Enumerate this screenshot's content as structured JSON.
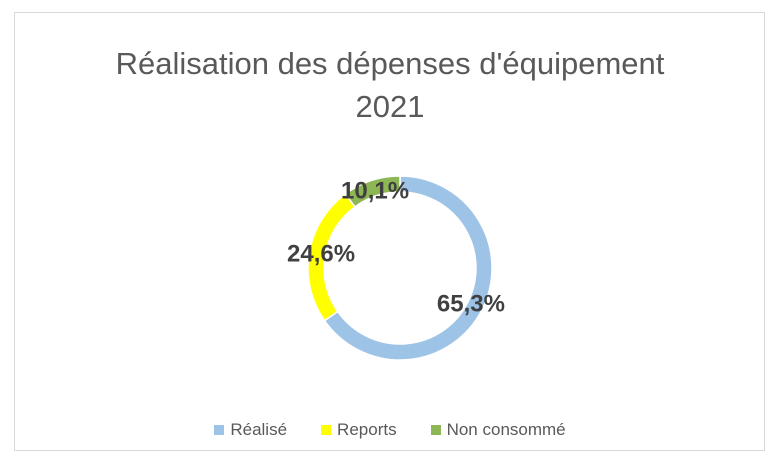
{
  "chart_data": {
    "type": "pie",
    "donut": true,
    "title": "Réalisation des dépenses d'équipement 2021",
    "categories": [
      "Réalisé",
      "Reports",
      "Non consommé"
    ],
    "values": [
      65.3,
      24.6,
      10.1
    ],
    "value_labels": [
      "65,3%",
      "24,6%",
      "10,1%"
    ],
    "colors": [
      "#9dc3e6",
      "#ffff00",
      "#8db654"
    ],
    "legend": "bottom"
  }
}
